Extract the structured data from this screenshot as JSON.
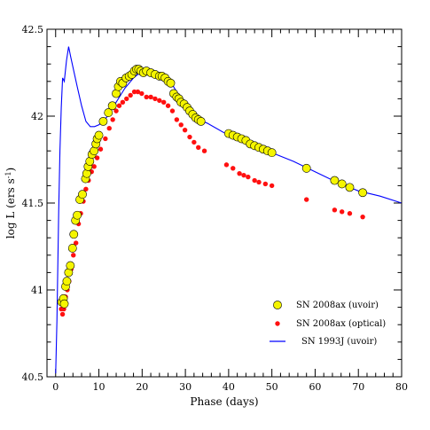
{
  "chart_data": {
    "type": "scatter",
    "xlabel": "Phase (days)",
    "ylabel": "log L (ers s",
    "ylabel_sup": "-1",
    "ylabel_tail": ")",
    "xlim": [
      -2,
      80
    ],
    "ylim": [
      40.5,
      42.5
    ],
    "x_major_ticks": [
      0,
      10,
      20,
      30,
      40,
      50,
      60,
      70,
      80
    ],
    "y_major_ticks": [
      40.5,
      41,
      41.5,
      42,
      42.5
    ],
    "x_tick_labels": [
      "0",
      "10",
      "20",
      "30",
      "40",
      "50",
      "60",
      "70",
      "80"
    ],
    "y_tick_labels": [
      "40.5",
      "41",
      "41.5",
      "42",
      "42.5"
    ],
    "legend_position": "bottom-right",
    "series": [
      {
        "name": "SN 2008ax (uvoir)",
        "marker": "circle-large",
        "color": "#f5f500",
        "edge": "#000000",
        "points": [
          [
            1.4,
            40.93
          ],
          [
            1.8,
            40.95
          ],
          [
            2.0,
            40.92
          ],
          [
            2.3,
            41.02
          ],
          [
            2.6,
            41.05
          ],
          [
            3.0,
            41.1
          ],
          [
            3.4,
            41.14
          ],
          [
            3.9,
            41.24
          ],
          [
            4.2,
            41.32
          ],
          [
            4.6,
            41.4
          ],
          [
            5.0,
            41.43
          ],
          [
            5.6,
            41.52
          ],
          [
            6.2,
            41.55
          ],
          [
            6.9,
            41.64
          ],
          [
            7.2,
            41.67
          ],
          [
            7.5,
            41.71
          ],
          [
            7.9,
            41.74
          ],
          [
            8.4,
            41.78
          ],
          [
            8.9,
            41.8
          ],
          [
            9.3,
            41.84
          ],
          [
            9.6,
            41.87
          ],
          [
            10.0,
            41.89
          ],
          [
            11.0,
            41.97
          ],
          [
            12.2,
            42.02
          ],
          [
            13.1,
            42.06
          ],
          [
            14.0,
            42.13
          ],
          [
            14.5,
            42.17
          ],
          [
            15.0,
            42.2
          ],
          [
            15.5,
            42.19
          ],
          [
            16.3,
            42.22
          ],
          [
            17.0,
            42.23
          ],
          [
            17.6,
            42.24
          ],
          [
            18.2,
            42.26
          ],
          [
            18.7,
            42.27
          ],
          [
            19.2,
            42.27
          ],
          [
            19.7,
            42.26
          ],
          [
            20.3,
            42.25
          ],
          [
            21.0,
            42.26
          ],
          [
            22.0,
            42.25
          ],
          [
            23.0,
            42.24
          ],
          [
            24.0,
            42.23
          ],
          [
            24.6,
            42.23
          ],
          [
            25.3,
            42.22
          ],
          [
            26.0,
            42.2
          ],
          [
            26.6,
            42.19
          ],
          [
            27.3,
            42.13
          ],
          [
            28.0,
            42.11
          ],
          [
            28.5,
            42.1
          ],
          [
            29.0,
            42.08
          ],
          [
            29.7,
            42.07
          ],
          [
            30.4,
            42.05
          ],
          [
            31.0,
            42.03
          ],
          [
            31.7,
            42.01
          ],
          [
            32.4,
            41.99
          ],
          [
            33.0,
            41.98
          ],
          [
            33.6,
            41.97
          ],
          [
            40.0,
            41.9
          ],
          [
            41.0,
            41.89
          ],
          [
            42.0,
            41.88
          ],
          [
            43.0,
            41.87
          ],
          [
            44.0,
            41.86
          ],
          [
            45.0,
            41.84
          ],
          [
            46.0,
            41.83
          ],
          [
            47.0,
            41.82
          ],
          [
            48.0,
            41.81
          ],
          [
            49.0,
            41.8
          ],
          [
            50.0,
            41.79
          ],
          [
            58.0,
            41.7
          ],
          [
            64.5,
            41.63
          ],
          [
            66.2,
            41.61
          ],
          [
            68.0,
            41.59
          ],
          [
            71.0,
            41.56
          ]
        ]
      },
      {
        "name": "SN 2008ax (optical)",
        "marker": "circle-small",
        "color": "#ff1010",
        "edge": "#ff1010",
        "points": [
          [
            1.3,
            40.89
          ],
          [
            1.6,
            40.86
          ],
          [
            1.9,
            40.89
          ],
          [
            2.3,
            40.96
          ],
          [
            2.7,
            41.0
          ],
          [
            3.1,
            41.05
          ],
          [
            3.6,
            41.12
          ],
          [
            4.1,
            41.2
          ],
          [
            4.7,
            41.27
          ],
          [
            5.3,
            41.38
          ],
          [
            5.8,
            41.44
          ],
          [
            6.4,
            41.51
          ],
          [
            7.0,
            41.58
          ],
          [
            7.6,
            41.63
          ],
          [
            8.3,
            41.68
          ],
          [
            8.9,
            41.71
          ],
          [
            9.6,
            41.76
          ],
          [
            10.4,
            41.81
          ],
          [
            11.5,
            41.87
          ],
          [
            12.4,
            41.93
          ],
          [
            13.2,
            41.98
          ],
          [
            14.0,
            42.03
          ],
          [
            14.7,
            42.06
          ],
          [
            15.5,
            42.08
          ],
          [
            16.4,
            42.1
          ],
          [
            17.3,
            42.12
          ],
          [
            18.2,
            42.14
          ],
          [
            19.0,
            42.14
          ],
          [
            19.9,
            42.13
          ],
          [
            21.0,
            42.11
          ],
          [
            22.0,
            42.11
          ],
          [
            23.0,
            42.1
          ],
          [
            24.0,
            42.09
          ],
          [
            25.0,
            42.08
          ],
          [
            26.0,
            42.06
          ],
          [
            27.0,
            42.03
          ],
          [
            28.0,
            41.98
          ],
          [
            29.0,
            41.95
          ],
          [
            29.9,
            41.92
          ],
          [
            31.0,
            41.88
          ],
          [
            32.0,
            41.85
          ],
          [
            33.0,
            41.82
          ],
          [
            34.4,
            41.8
          ],
          [
            39.5,
            41.72
          ],
          [
            41.0,
            41.7
          ],
          [
            42.5,
            41.67
          ],
          [
            43.5,
            41.66
          ],
          [
            44.5,
            41.65
          ],
          [
            46.0,
            41.63
          ],
          [
            47.0,
            41.62
          ],
          [
            48.5,
            41.61
          ],
          [
            50.0,
            41.6
          ],
          [
            58.0,
            41.52
          ],
          [
            64.5,
            41.46
          ],
          [
            66.2,
            41.45
          ],
          [
            68.0,
            41.44
          ],
          [
            71.0,
            41.42
          ]
        ]
      },
      {
        "name": "SN 1993J (uvoir)",
        "marker": "line",
        "color": "#0000ff",
        "points": [
          [
            0.0,
            40.52
          ],
          [
            0.3,
            40.82
          ],
          [
            0.7,
            41.45
          ],
          [
            1.0,
            41.8
          ],
          [
            1.3,
            42.05
          ],
          [
            1.6,
            42.22
          ],
          [
            2.0,
            42.2
          ],
          [
            2.5,
            42.32
          ],
          [
            3.0,
            42.4
          ],
          [
            3.5,
            42.34
          ],
          [
            4.2,
            42.26
          ],
          [
            5.0,
            42.17
          ],
          [
            6.0,
            42.06
          ],
          [
            7.0,
            41.97
          ],
          [
            8.0,
            41.94
          ],
          [
            9.0,
            41.94
          ],
          [
            10.0,
            41.95
          ],
          [
            11.0,
            41.97
          ],
          [
            12.0,
            42.0
          ],
          [
            13.0,
            42.04
          ],
          [
            14.0,
            42.08
          ],
          [
            15.0,
            42.12
          ],
          [
            16.0,
            42.16
          ],
          [
            17.0,
            42.19
          ],
          [
            18.0,
            42.22
          ],
          [
            19.0,
            42.24
          ],
          [
            20.0,
            42.25
          ],
          [
            21.0,
            42.26
          ],
          [
            22.0,
            42.26
          ],
          [
            23.0,
            42.26
          ],
          [
            24.0,
            42.25
          ],
          [
            25.0,
            42.23
          ],
          [
            26.0,
            42.21
          ],
          [
            27.0,
            42.18
          ],
          [
            28.0,
            42.14
          ],
          [
            29.0,
            42.1
          ],
          [
            30.0,
            42.07
          ],
          [
            31.0,
            42.04
          ],
          [
            32.0,
            42.01
          ],
          [
            33.0,
            41.99
          ],
          [
            34.0,
            41.97
          ],
          [
            35.0,
            41.96
          ],
          [
            40.0,
            41.89
          ],
          [
            45.0,
            41.84
          ],
          [
            50.0,
            41.79
          ],
          [
            55.0,
            41.74
          ],
          [
            60.0,
            41.68
          ],
          [
            65.0,
            41.62
          ],
          [
            70.0,
            41.57
          ],
          [
            75.0,
            41.54
          ],
          [
            80.0,
            41.5
          ]
        ]
      }
    ]
  }
}
